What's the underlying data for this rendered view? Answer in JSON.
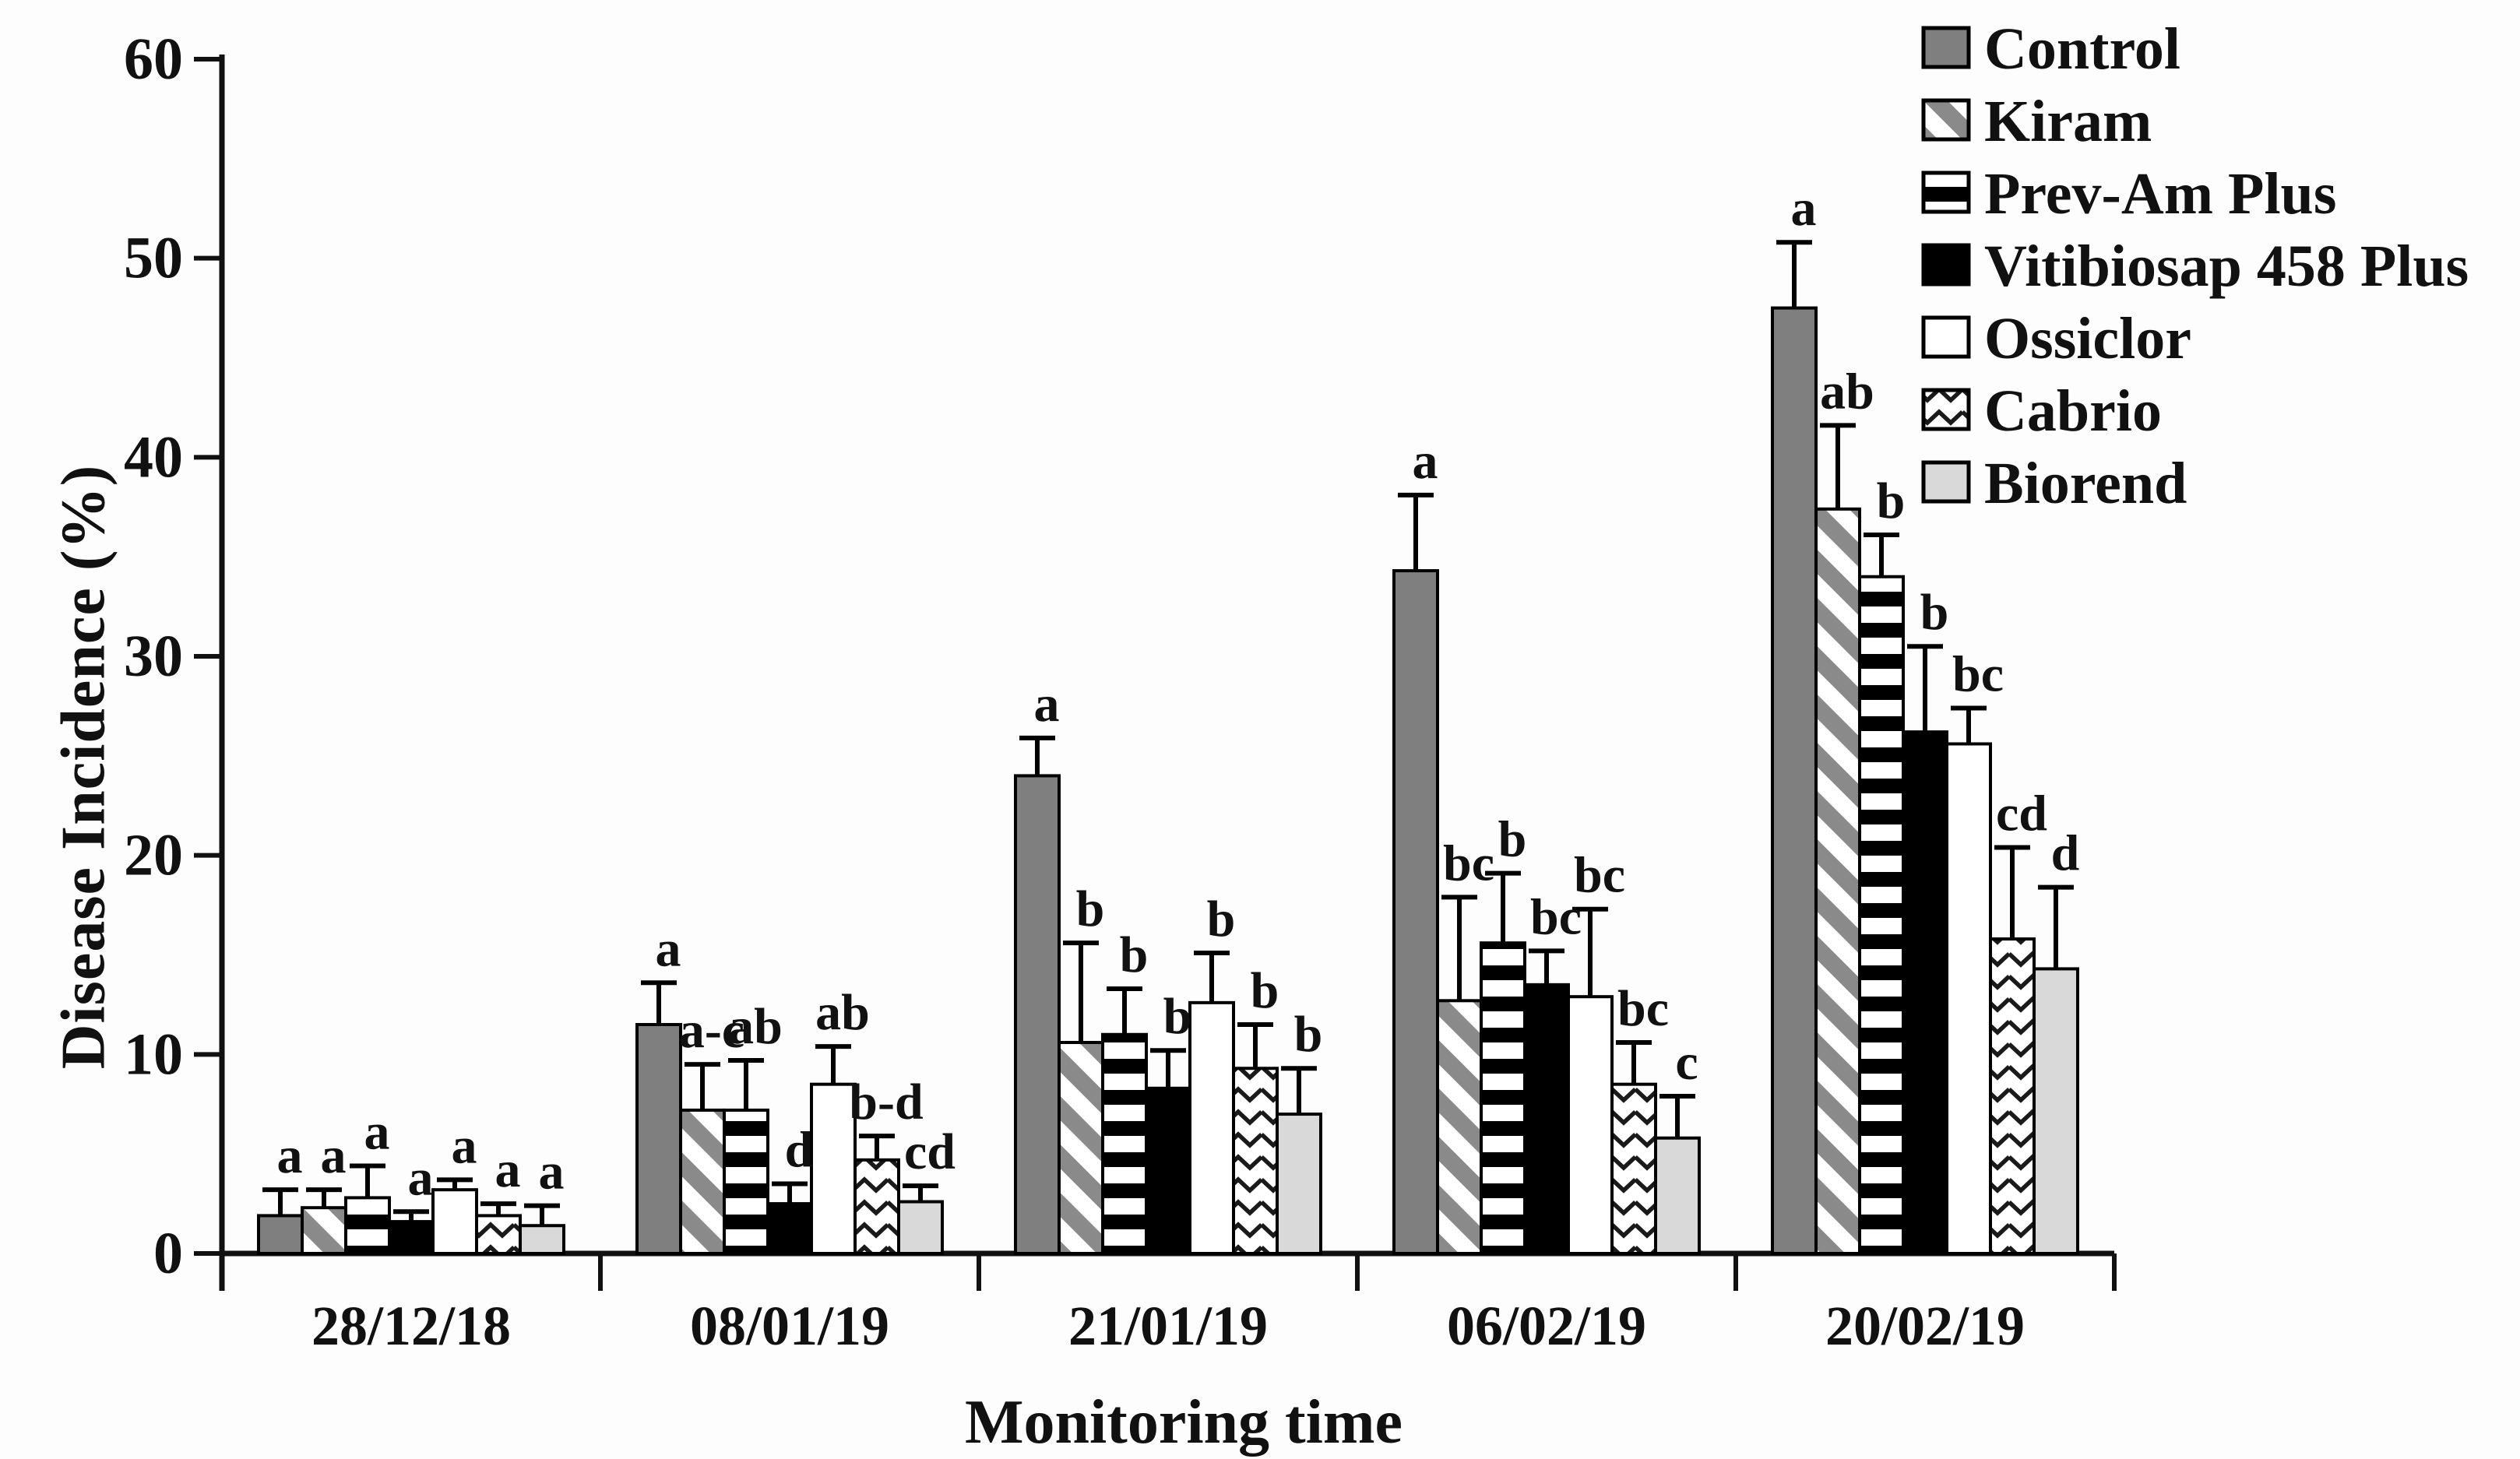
{
  "figure": {
    "background": "#fdfdfd",
    "ink": "#111111"
  },
  "chart_data": {
    "type": "bar",
    "title": "",
    "xlabel": "Monitoring time",
    "ylabel": "Disease Incidence (%)",
    "ylim": [
      0,
      60
    ],
    "ytick_step": 10,
    "ytick_labels": [
      "0",
      "10",
      "20",
      "30",
      "40",
      "50",
      "60"
    ],
    "grid": false,
    "legend_position": "top-right",
    "error_bar_style": "upper-one-sided-capped",
    "categories": [
      "28/12/18",
      "08/01/19",
      "21/01/19",
      "06/02/19",
      "20/02/19"
    ],
    "series": [
      {
        "name": "Control",
        "pattern": "solid",
        "fill": "#7f7f7f",
        "values": [
          1.9,
          11.5,
          24.0,
          34.3,
          47.5
        ],
        "errors": [
          1.3,
          2.1,
          1.9,
          3.8,
          3.3
        ],
        "letters": [
          "a",
          "a",
          "a",
          "a",
          "a"
        ]
      },
      {
        "name": "Kiram",
        "pattern": "diagonal-stripes",
        "fill": "#ffffff",
        "stripe": "#8a8a8a",
        "values": [
          2.3,
          7.2,
          10.6,
          12.7,
          37.4
        ],
        "errors": [
          0.9,
          2.3,
          5.0,
          5.2,
          4.2
        ],
        "letters": [
          "a",
          "a-c",
          "b",
          "bc",
          "ab"
        ]
      },
      {
        "name": "Prev-Am Plus",
        "pattern": "horizontal-stripes",
        "fill": "#ffffff",
        "stripe": "#000000",
        "values": [
          2.8,
          7.2,
          11.0,
          15.6,
          34.0
        ],
        "errors": [
          1.6,
          2.5,
          2.3,
          3.5,
          2.1
        ],
        "letters": [
          "a",
          "ab",
          "b",
          "b",
          "b"
        ]
      },
      {
        "name": "Vitibiosap 458 Plus",
        "pattern": "solid",
        "fill": "#000000",
        "values": [
          1.6,
          2.5,
          8.3,
          13.5,
          26.2
        ],
        "errors": [
          0.5,
          1.0,
          1.9,
          1.7,
          4.3
        ],
        "letters": [
          "a",
          "d",
          "b",
          "bc",
          "b"
        ]
      },
      {
        "name": "Ossiclor",
        "pattern": "solid",
        "fill": "#ffffff",
        "values": [
          3.2,
          8.5,
          12.6,
          12.9,
          25.6
        ],
        "errors": [
          0.5,
          1.9,
          2.5,
          4.4,
          1.8
        ],
        "letters": [
          "a",
          "ab",
          "b",
          "bc",
          "bc"
        ]
      },
      {
        "name": "Cabrio",
        "pattern": "zigzag",
        "fill": "#ffffff",
        "stripe": "#1a1a1a",
        "values": [
          1.9,
          4.7,
          9.3,
          8.5,
          15.8
        ],
        "errors": [
          0.6,
          1.2,
          2.2,
          2.1,
          4.6
        ],
        "letters": [
          "a",
          "b-d",
          "b",
          "bc",
          "cd"
        ]
      },
      {
        "name": "Biorend",
        "pattern": "solid",
        "fill": "#d9d9d9",
        "values": [
          1.4,
          2.6,
          7.0,
          5.8,
          14.3
        ],
        "errors": [
          1.0,
          0.8,
          2.3,
          2.1,
          4.1
        ],
        "letters": [
          "a",
          "cd",
          "b",
          "c",
          "d"
        ]
      }
    ]
  }
}
